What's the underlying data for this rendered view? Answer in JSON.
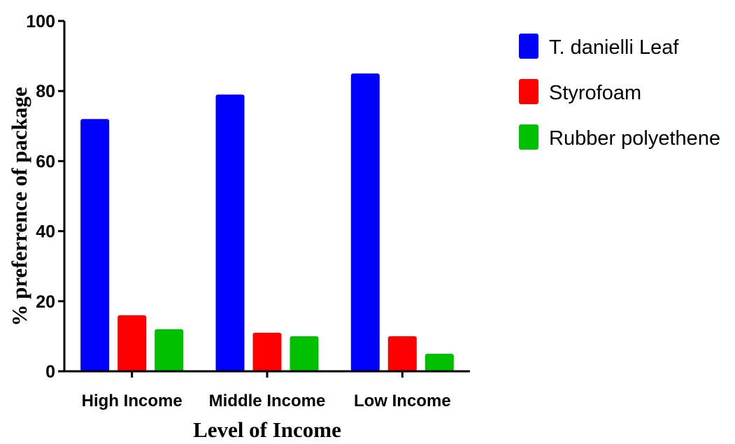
{
  "chart_data": {
    "type": "bar",
    "title": "",
    "xlabel": "Level of Income",
    "ylabel": "% preferrence of package",
    "categories": [
      "High Income",
      "Middle Income",
      "Low Income"
    ],
    "series": [
      {
        "name": "T. danielli Leaf",
        "color": "#0000ff",
        "values": [
          72,
          79,
          85
        ]
      },
      {
        "name": "Styrofoam",
        "color": "#ff0000",
        "values": [
          16,
          11,
          10
        ]
      },
      {
        "name": "Rubber polyethene",
        "color": "#00c000",
        "values": [
          12,
          10,
          5
        ]
      }
    ],
    "ylim": [
      0,
      100
    ],
    "yticks": [
      "0",
      "20",
      "40",
      "60",
      "80",
      "100"
    ],
    "grid": false,
    "legend": "top-right"
  }
}
